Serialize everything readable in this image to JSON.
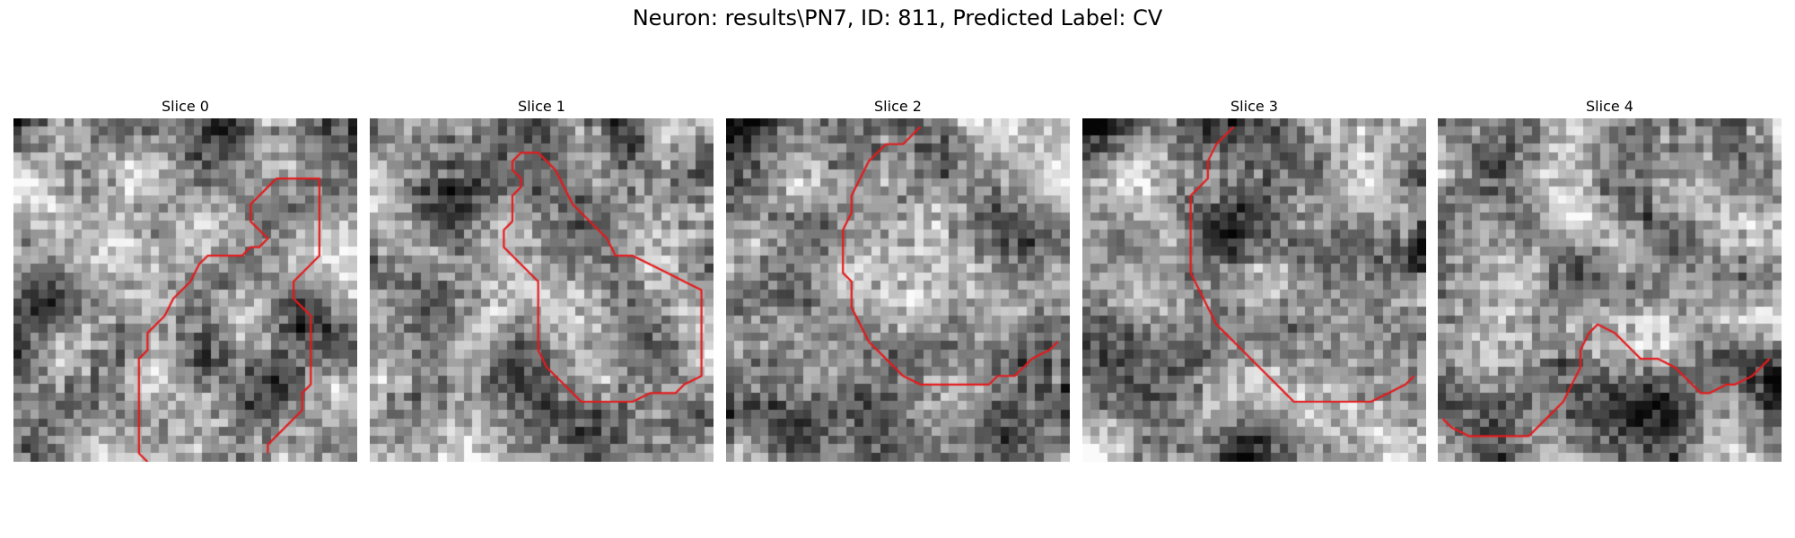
{
  "figure": {
    "title": "Neuron: results\\PN7, ID: 811, Predicted Label: CV",
    "contour_color": "#e41a1c",
    "panels": [
      {
        "title": "Slice 0",
        "seed": 11,
        "contour": [
          [
            15.6,
            40
          ],
          [
            14.6,
            39
          ],
          [
            14.6,
            28
          ],
          [
            15.6,
            27
          ],
          [
            15.6,
            25
          ],
          [
            17.6,
            23
          ],
          [
            18.6,
            21
          ],
          [
            20.6,
            19
          ],
          [
            21.6,
            17
          ],
          [
            22.6,
            16
          ],
          [
            26.6,
            16
          ],
          [
            27.6,
            15
          ],
          [
            28.6,
            15
          ],
          [
            29.6,
            14
          ],
          [
            28.6,
            13
          ],
          [
            27.6,
            12
          ],
          [
            27.6,
            10
          ],
          [
            28.6,
            9
          ],
          [
            29.6,
            8
          ],
          [
            30.6,
            7
          ],
          [
            35.6,
            7
          ],
          [
            35.6,
            16
          ],
          [
            32.6,
            19
          ],
          [
            32.6,
            21
          ],
          [
            33.6,
            22
          ],
          [
            34.6,
            23
          ],
          [
            34.6,
            31
          ],
          [
            33.6,
            32
          ],
          [
            33.6,
            34
          ],
          [
            29.6,
            38
          ],
          [
            29.6,
            39
          ]
        ]
      },
      {
        "title": "Slice 1",
        "seed": 23,
        "contour": [
          [
            16.6,
            12
          ],
          [
            15.6,
            13
          ],
          [
            15.6,
            15
          ],
          [
            16.6,
            16
          ],
          [
            19.6,
            19
          ],
          [
            19.6,
            27
          ],
          [
            20.6,
            29
          ],
          [
            21.6,
            30
          ],
          [
            22.6,
            31
          ],
          [
            23.6,
            32
          ],
          [
            24.6,
            33
          ],
          [
            30.6,
            33
          ],
          [
            32.6,
            32
          ],
          [
            35.6,
            32
          ],
          [
            36.6,
            31
          ],
          [
            38.6,
            30
          ],
          [
            38.6,
            28
          ],
          [
            38.6,
            20
          ],
          [
            36.6,
            19
          ],
          [
            34.6,
            18
          ],
          [
            32.6,
            17
          ],
          [
            30.6,
            16
          ],
          [
            28.6,
            16
          ],
          [
            27.6,
            14
          ],
          [
            24.6,
            11
          ],
          [
            23.6,
            10
          ],
          [
            22.6,
            8
          ],
          [
            21.6,
            6
          ],
          [
            20.6,
            5
          ],
          [
            19.6,
            4
          ],
          [
            18.6,
            4
          ],
          [
            17.6,
            4
          ],
          [
            16.6,
            5
          ],
          [
            16.6,
            6
          ],
          [
            17.6,
            7
          ],
          [
            17.6,
            8
          ],
          [
            16.6,
            9
          ],
          [
            16.6,
            12
          ]
        ]
      },
      {
        "title": "Slice 2",
        "seed": 37,
        "contour": [
          [
            22.6,
            1
          ],
          [
            20.6,
            3
          ],
          [
            18.6,
            3
          ],
          [
            16.6,
            5
          ],
          [
            15.6,
            7
          ],
          [
            14.6,
            9
          ],
          [
            14.6,
            11
          ],
          [
            13.6,
            13
          ],
          [
            13.6,
            17
          ],
          [
            13.6,
            18
          ],
          [
            14.6,
            19
          ],
          [
            14.6,
            22
          ],
          [
            15.6,
            24
          ],
          [
            16.6,
            26
          ],
          [
            18.6,
            28
          ],
          [
            20.6,
            30
          ],
          [
            22.6,
            31
          ],
          [
            24.6,
            31
          ],
          [
            29.6,
            31
          ],
          [
            30.6,
            31
          ],
          [
            31.6,
            30
          ],
          [
            33.6,
            30
          ],
          [
            34.6,
            29
          ],
          [
            35.6,
            28
          ],
          [
            37.6,
            27
          ],
          [
            38.6,
            26
          ]
        ]
      },
      {
        "title": "Slice 3",
        "seed": 53,
        "contour": [
          [
            17.6,
            1
          ],
          [
            15.6,
            3
          ],
          [
            14.6,
            5
          ],
          [
            14.6,
            7
          ],
          [
            12.6,
            9
          ],
          [
            12.6,
            13
          ],
          [
            12.6,
            18
          ],
          [
            13.6,
            20
          ],
          [
            14.6,
            22
          ],
          [
            15.6,
            24
          ],
          [
            16.6,
            25
          ],
          [
            18.6,
            27
          ],
          [
            20.6,
            29
          ],
          [
            21.6,
            30
          ],
          [
            23.6,
            32
          ],
          [
            24.6,
            33
          ],
          [
            28.6,
            33
          ],
          [
            33.6,
            33
          ],
          [
            35.6,
            32
          ],
          [
            37.6,
            31
          ],
          [
            38.6,
            30
          ]
        ]
      },
      {
        "title": "Slice 4",
        "seed": 71,
        "contour": [
          [
            0.6,
            35
          ],
          [
            1.6,
            36
          ],
          [
            3.6,
            37
          ],
          [
            10.6,
            37
          ],
          [
            12.6,
            35
          ],
          [
            14.6,
            33
          ],
          [
            15.6,
            31
          ],
          [
            16.6,
            29
          ],
          [
            16.6,
            27
          ],
          [
            17.6,
            25
          ],
          [
            18.6,
            24
          ],
          [
            20.6,
            25
          ],
          [
            22.6,
            27
          ],
          [
            23.6,
            28
          ],
          [
            25.6,
            28
          ],
          [
            27.6,
            29
          ],
          [
            28.6,
            30
          ],
          [
            29.6,
            31
          ],
          [
            30.6,
            32
          ],
          [
            31.6,
            32
          ],
          [
            33.6,
            31
          ],
          [
            34.6,
            31
          ],
          [
            36.6,
            30
          ],
          [
            38.6,
            28
          ]
        ]
      }
    ]
  }
}
